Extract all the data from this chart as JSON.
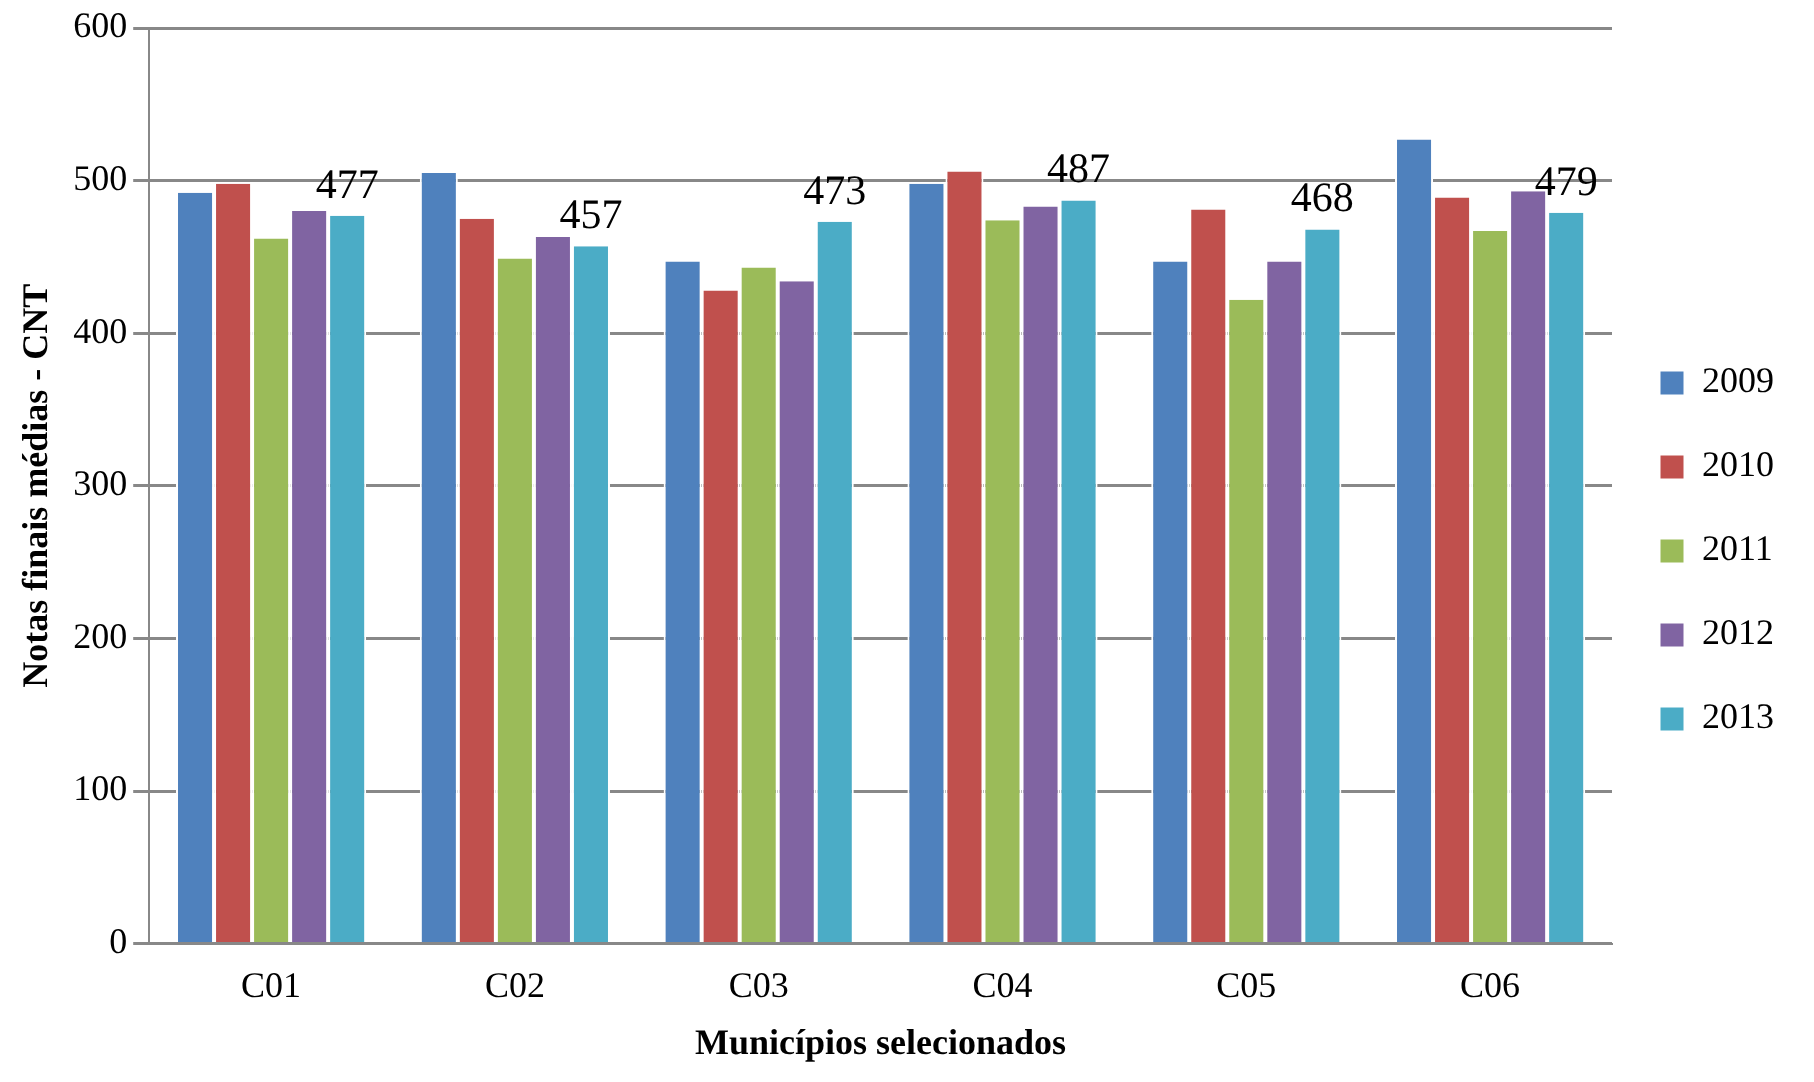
{
  "chart_data": {
    "type": "bar",
    "xlabel": "Municípios selecionados",
    "ylabel": "Notas finais médias - CNT",
    "categories": [
      "C01",
      "C02",
      "C03",
      "C04",
      "C05",
      "C06"
    ],
    "series": [
      {
        "name": "2009",
        "color": "#4f81bd",
        "values": [
          492,
          505,
          447,
          498,
          447,
          527
        ]
      },
      {
        "name": "2010",
        "color": "#c0504d",
        "values": [
          498,
          475,
          428,
          506,
          481,
          489
        ]
      },
      {
        "name": "2011",
        "color": "#9bbb59",
        "values": [
          462,
          449,
          443,
          474,
          422,
          467
        ]
      },
      {
        "name": "2012",
        "color": "#8064a2",
        "values": [
          480,
          463,
          434,
          483,
          447,
          493
        ]
      },
      {
        "name": "2013",
        "color": "#4bacc6",
        "values": [
          477,
          457,
          473,
          487,
          468,
          479
        ],
        "value_labels": [
          "477",
          "457",
          "473",
          "487",
          "468",
          "479"
        ]
      }
    ],
    "ylim": [
      0,
      600
    ],
    "yticks": [
      0,
      100,
      200,
      300,
      400,
      500,
      600
    ],
    "grid": "y",
    "legend": "right"
  }
}
